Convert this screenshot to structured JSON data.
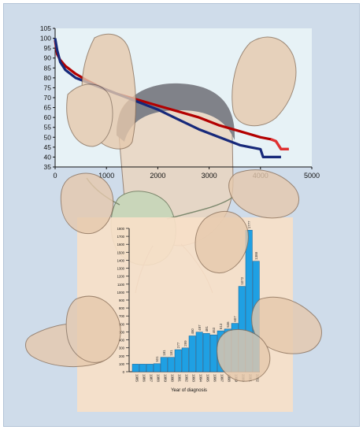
{
  "colors": {
    "panel_bg": "#cfdcea",
    "top_plot_bg": "#e7f2f6",
    "series_red": "#b30000",
    "series_red_tail": "#e03030",
    "series_blue": "#17297a",
    "bottom_plot_bg": "#f7dfc8",
    "bars": "#1fa0e3",
    "bars_stroke": "#0b5f9a"
  },
  "icons": [
    "hands-illustration-icon",
    "face-with-mask-icon"
  ],
  "chart_data": [
    {
      "type": "line",
      "title": "",
      "xlabel": "",
      "ylabel": "",
      "xlim": [
        0,
        5000
      ],
      "ylim": [
        35,
        105
      ],
      "x_ticks": [
        "0",
        "1000",
        "2000",
        "3000",
        "4000",
        "5000"
      ],
      "y_ticks": [
        "35",
        "40",
        "45",
        "50",
        "55",
        "60",
        "65",
        "70",
        "75",
        "80",
        "85",
        "90",
        "95",
        "100",
        "105"
      ],
      "grid": false,
      "series": [
        {
          "color": "#b30000",
          "x": [
            0,
            40,
            100,
            200,
            400,
            600,
            900,
            1200,
            1600,
            2000,
            2400,
            2800,
            3200,
            3600,
            4000,
            4200,
            4300,
            4400,
            4550
          ],
          "y": [
            99,
            92,
            89,
            86,
            82,
            79,
            75,
            72,
            69,
            66,
            63,
            60,
            56,
            53,
            50,
            49,
            48,
            44,
            44
          ]
        },
        {
          "color": "#17297a",
          "x": [
            0,
            40,
            100,
            200,
            400,
            600,
            900,
            1200,
            1600,
            2000,
            2400,
            2800,
            3200,
            3600,
            3800,
            4000,
            4050,
            4150,
            4400
          ],
          "y": [
            100,
            94,
            88,
            84,
            80,
            78,
            75,
            72,
            68,
            64,
            59,
            54,
            50,
            46,
            45,
            44,
            40,
            40,
            40
          ]
        }
      ]
    },
    {
      "type": "bar",
      "title": "",
      "xlabel": "Year of diagnosis",
      "ylabel": "",
      "ylim": [
        0,
        1800
      ],
      "y_ticks": [
        "0",
        "100",
        "200",
        "300",
        "400",
        "500",
        "600",
        "700",
        "800",
        "900",
        "1000",
        "1100",
        "1200",
        "1300",
        "1400",
        "1500",
        "1600",
        "1700",
        "1800"
      ],
      "grid": false,
      "categories": [
        "1985",
        "1986",
        "1987",
        "1988",
        "1989",
        "1990",
        "1991",
        "1992",
        "1993",
        "1994",
        "1995",
        "1996",
        "1997",
        "1998",
        "1999",
        "2000",
        "2001",
        "2002"
      ],
      "values": [
        95,
        95,
        95,
        101,
        181,
        181,
        277,
        299,
        450,
        497,
        481,
        463,
        513,
        536,
        607,
        1072,
        1777,
        1388
      ],
      "data_labels": [
        "",
        "",
        "",
        "101",
        "181",
        "181",
        "277",
        "299",
        "450",
        "497",
        "481",
        "463",
        "513",
        "536",
        "607",
        "1072",
        "1777",
        "1388"
      ]
    }
  ]
}
